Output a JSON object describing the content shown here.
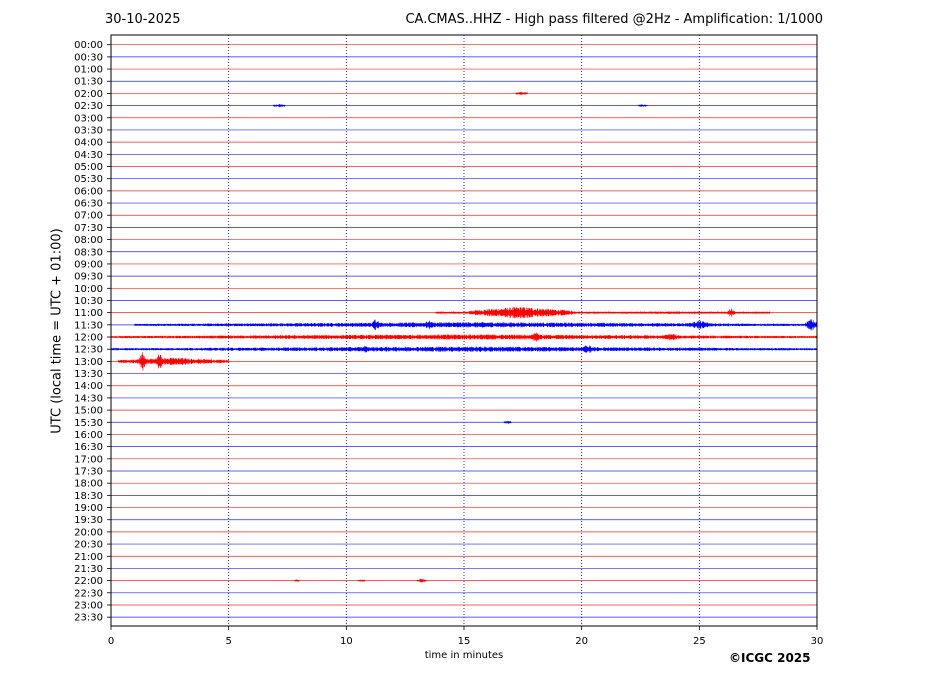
{
  "header": {
    "date": "30-10-2025",
    "title": "CA.CMAS..HHZ - High pass filtered @2Hz - Amplification: 1/1000"
  },
  "footer": {
    "copyright": "©ICGC 2025"
  },
  "chart_data": {
    "type": "line",
    "xlabel": "time in minutes",
    "ylabel": "UTC (local time = UTC + 01:00)",
    "xlim": [
      0,
      30
    ],
    "x_ticks": [
      "0",
      "5",
      "10",
      "15",
      "20",
      "25",
      "30"
    ],
    "x_tick_values": [
      0,
      5,
      10,
      15,
      20,
      25,
      30
    ],
    "vertical_gridlines_minutes": [
      5,
      10,
      15,
      20,
      25
    ],
    "row_labels": [
      "00:00",
      "00:30",
      "01:00",
      "01:30",
      "02:00",
      "02:30",
      "03:00",
      "03:30",
      "04:00",
      "04:30",
      "05:00",
      "05:30",
      "06:00",
      "06:30",
      "07:00",
      "07:30",
      "08:00",
      "08:30",
      "09:00",
      "09:30",
      "10:00",
      "10:30",
      "11:00",
      "11:30",
      "12:00",
      "12:30",
      "13:00",
      "13:30",
      "14:00",
      "14:30",
      "15:00",
      "15:30",
      "16:00",
      "16:30",
      "17:00",
      "17:30",
      "18:00",
      "18:30",
      "19:00",
      "19:30",
      "20:00",
      "20:30",
      "21:00",
      "21:30",
      "22:00",
      "22:30",
      "23:00",
      "23:30"
    ],
    "trace_colors": [
      "#ff0000",
      "#0000ff"
    ],
    "events": [
      {
        "row": "02:00",
        "start_min": 17.2,
        "end_min": 17.7,
        "amplitude": 0.15
      },
      {
        "row": "02:30",
        "start_min": 6.9,
        "end_min": 7.4,
        "amplitude": 0.15
      },
      {
        "row": "02:30",
        "start_min": 22.4,
        "end_min": 22.8,
        "amplitude": 0.08
      },
      {
        "row": "11:00",
        "start_min": 13.8,
        "end_min": 15.2,
        "amplitude": 0.1
      },
      {
        "row": "11:00",
        "start_min": 15.2,
        "end_min": 19.6,
        "amplitude": 0.55
      },
      {
        "row": "11:00",
        "start_min": 19.6,
        "end_min": 28.0,
        "amplitude": 0.12
      },
      {
        "row": "11:00",
        "start_min": 26.2,
        "end_min": 26.5,
        "amplitude": 0.45
      },
      {
        "row": "11:30",
        "start_min": 1.0,
        "end_min": 30.0,
        "amplitude": 0.25
      },
      {
        "row": "11:30",
        "start_min": 11.1,
        "end_min": 11.4,
        "amplitude": 0.6
      },
      {
        "row": "11:30",
        "start_min": 13.3,
        "end_min": 13.7,
        "amplitude": 0.45
      },
      {
        "row": "11:30",
        "start_min": 24.5,
        "end_min": 25.5,
        "amplitude": 0.4
      },
      {
        "row": "11:30",
        "start_min": 29.5,
        "end_min": 30.0,
        "amplitude": 0.55
      },
      {
        "row": "12:00",
        "start_min": 0.0,
        "end_min": 30.0,
        "amplitude": 0.25
      },
      {
        "row": "12:00",
        "start_min": 17.8,
        "end_min": 18.3,
        "amplitude": 0.45
      },
      {
        "row": "12:00",
        "start_min": 23.4,
        "end_min": 24.2,
        "amplitude": 0.35
      },
      {
        "row": "12:30",
        "start_min": 0.0,
        "end_min": 30.0,
        "amplitude": 0.25
      },
      {
        "row": "12:30",
        "start_min": 20.0,
        "end_min": 20.5,
        "amplitude": 0.45
      },
      {
        "row": "12:30",
        "start_min": 10.7,
        "end_min": 10.9,
        "amplitude": 0.4
      },
      {
        "row": "13:00",
        "start_min": 0.3,
        "end_min": 5.0,
        "amplitude": 0.35
      },
      {
        "row": "13:00",
        "start_min": 1.2,
        "end_min": 1.5,
        "amplitude": 0.85
      },
      {
        "row": "13:00",
        "start_min": 1.9,
        "end_min": 2.2,
        "amplitude": 0.8
      },
      {
        "row": "15:30",
        "start_min": 16.7,
        "end_min": 17.0,
        "amplitude": 0.15
      },
      {
        "row": "22:00",
        "start_min": 13.0,
        "end_min": 13.4,
        "amplitude": 0.2
      },
      {
        "row": "22:00",
        "start_min": 7.8,
        "end_min": 8.0,
        "amplitude": 0.08
      },
      {
        "row": "22:00",
        "start_min": 10.5,
        "end_min": 10.8,
        "amplitude": 0.06
      }
    ]
  }
}
